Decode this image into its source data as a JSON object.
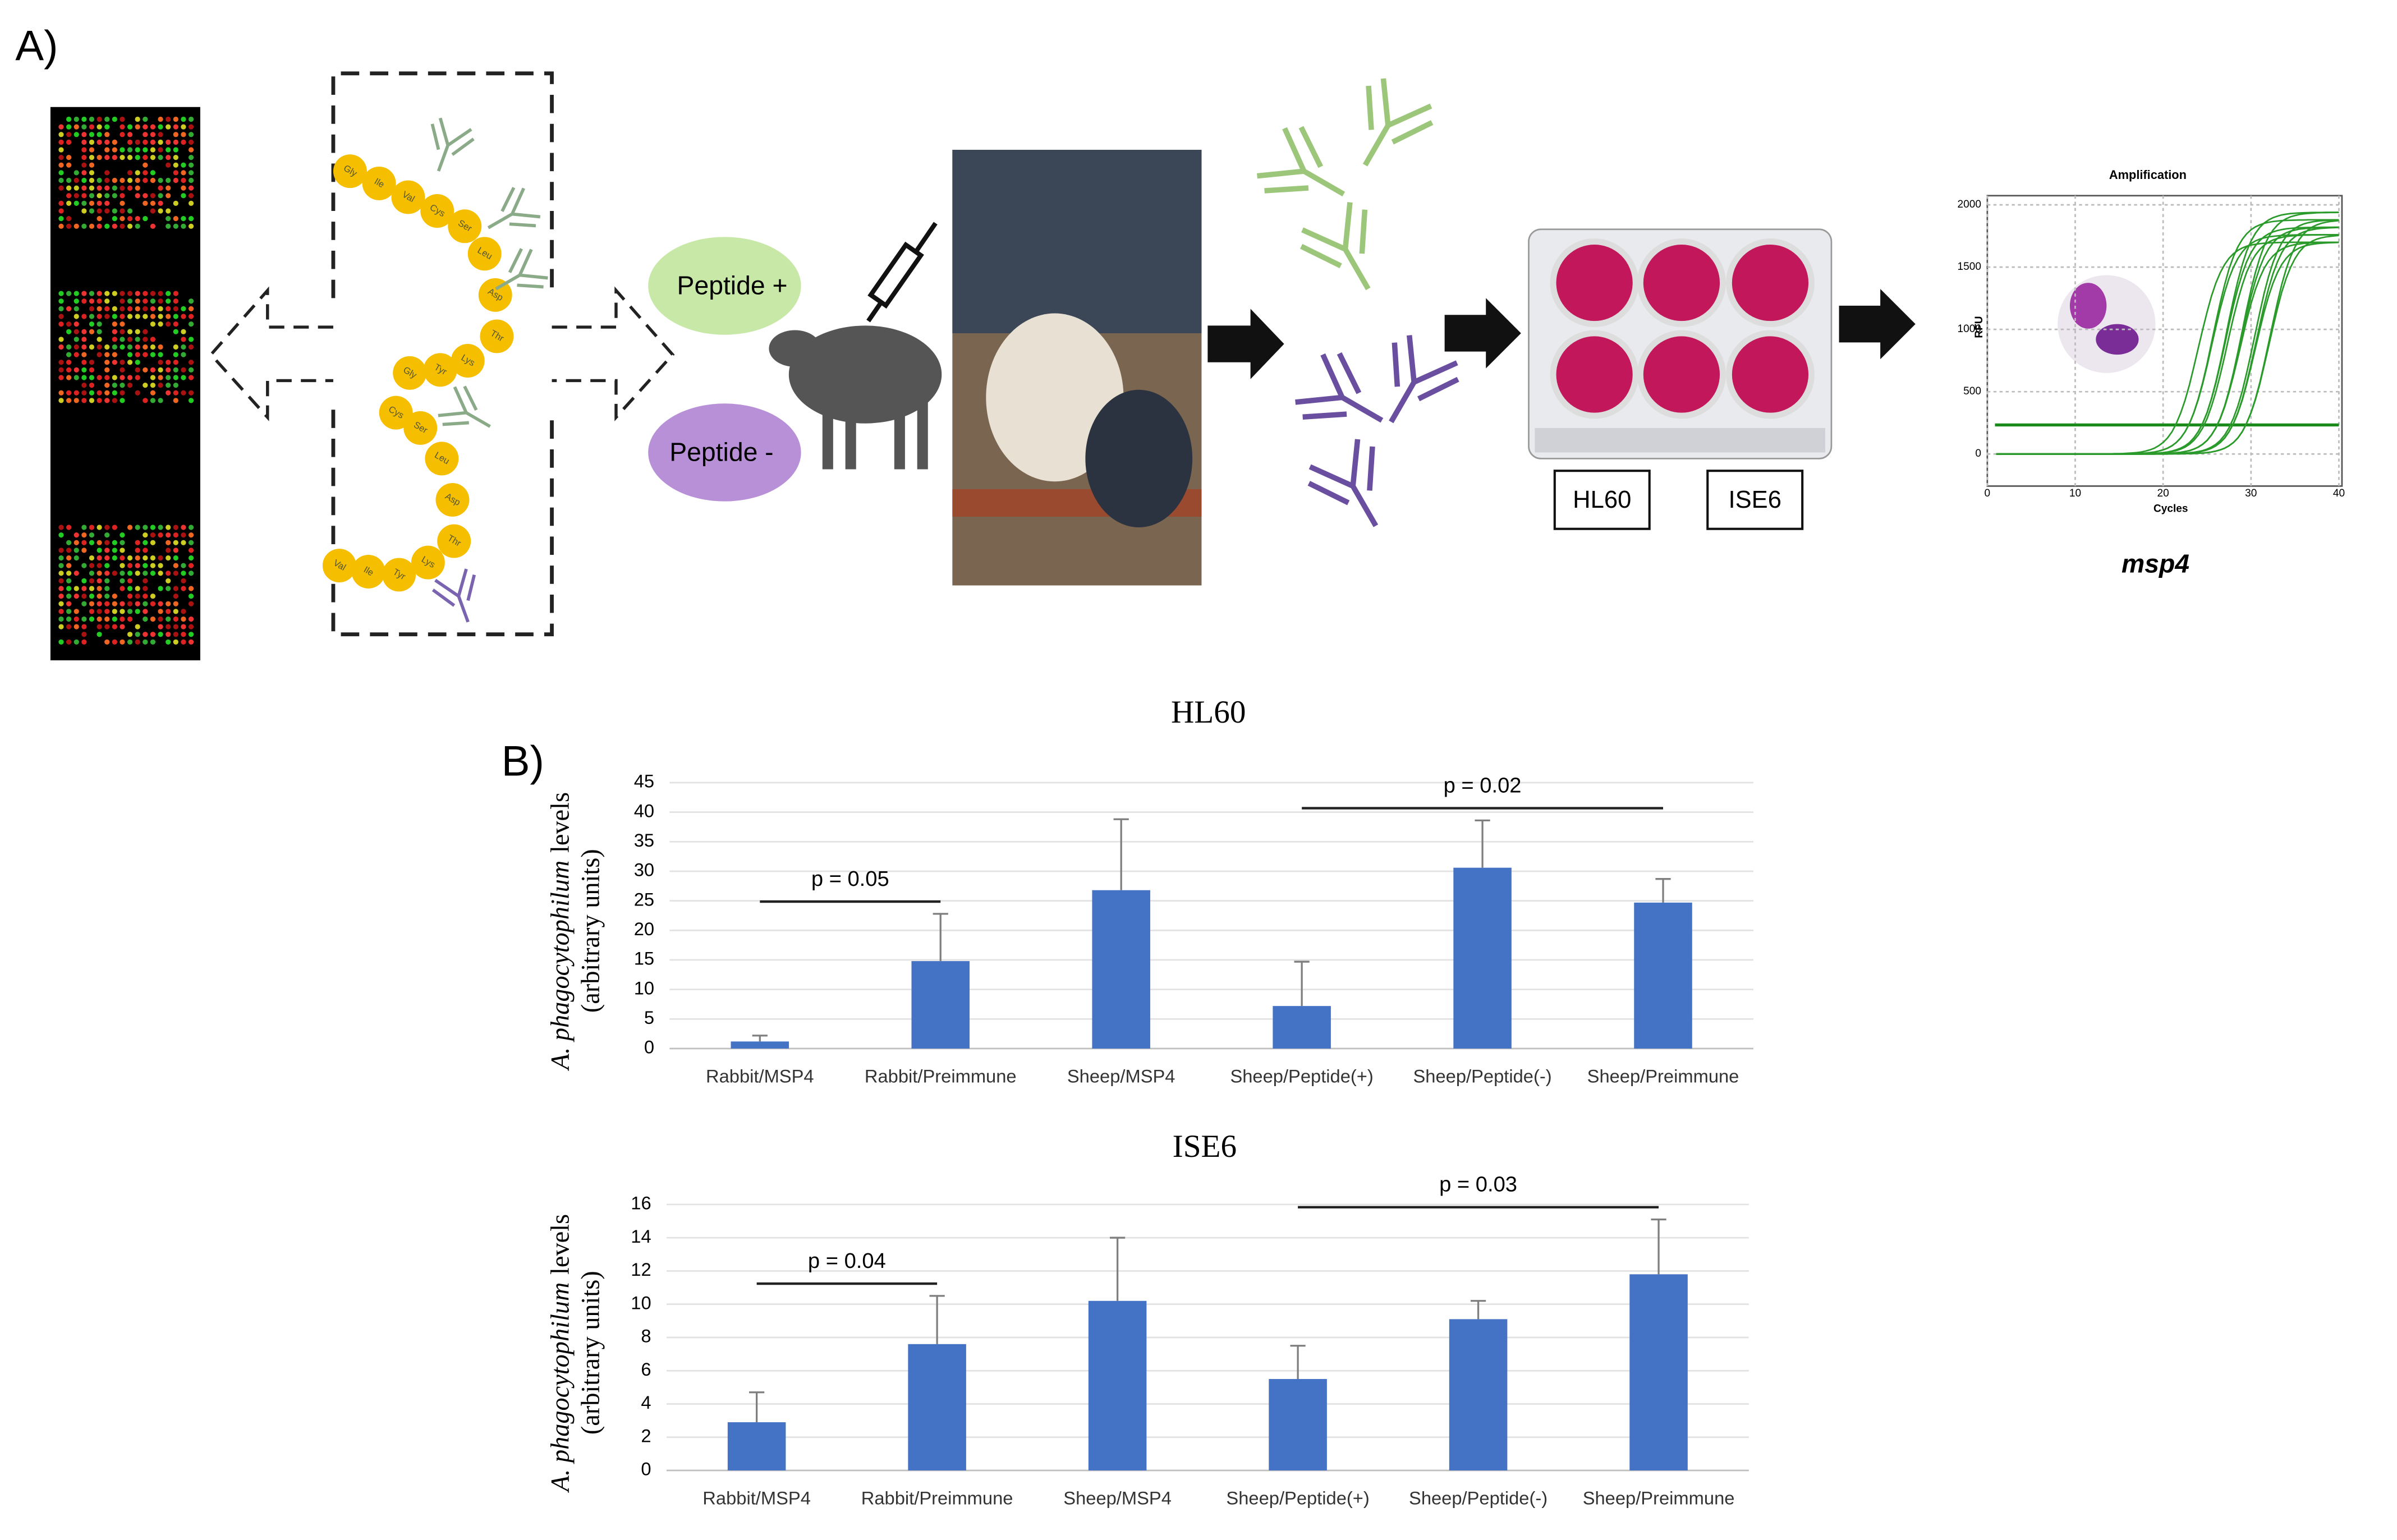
{
  "panel_a": {
    "label": "A)",
    "residues": [
      "Gly",
      "Ile",
      "Val",
      "Cys",
      "Ser",
      "Leu",
      "Asp",
      "Thr",
      "Lys",
      "Tyr",
      "Gly",
      "Cys",
      "Ser",
      "Leu",
      "Asp",
      "Thr",
      "Lys",
      "Tyr",
      "Ile",
      "Val"
    ],
    "peptide_pos": "Peptide +",
    "peptide_neg": "Peptide -",
    "cell_lines": [
      "HL60",
      "ISE6"
    ],
    "amplification": {
      "title": "Amplification",
      "ylabel": "RFU",
      "xlabel": "Cycles",
      "yticks": [
        0,
        500,
        1000,
        1500,
        2000
      ],
      "xticks": [
        0,
        10,
        20,
        30,
        40
      ]
    },
    "gene": "msp4"
  },
  "panel_b": {
    "label": "B)"
  },
  "chart_data": [
    {
      "type": "bar",
      "title": "HL60",
      "ylabel_italic": "A. phagocytophilum",
      "ylabel": "levels",
      "ylabel_line2": "(arbitrary units)",
      "categories": [
        "Rabbit/MSP4",
        "Rabbit/Preimmune",
        "Sheep/MSP4",
        "Sheep/Peptide(+)",
        "Sheep/Peptide(-)",
        "Sheep/Preimmune"
      ],
      "values": [
        1.2,
        14.8,
        26.8,
        7.2,
        30.6,
        24.7
      ],
      "errors": [
        1.0,
        8.0,
        12.0,
        7.5,
        8.0,
        4.0
      ],
      "color": "#4472c4",
      "ylim": [
        0,
        45
      ],
      "yticks": [
        0,
        5,
        10,
        15,
        20,
        25,
        30,
        35,
        40,
        45
      ],
      "grid": true,
      "annotations": [
        {
          "text": "p = 0.05",
          "categories": [
            "Rabbit/MSP4",
            "Rabbit/Preimmune"
          ]
        },
        {
          "text": "p = 0.02",
          "categories": [
            "Sheep/Peptide(+)",
            "Sheep/Preimmune"
          ]
        }
      ]
    },
    {
      "type": "bar",
      "title": "ISE6",
      "ylabel_italic": "A. phagocytophilum",
      "ylabel": "levels",
      "ylabel_line2": "(arbitrary units)",
      "categories": [
        "Rabbit/MSP4",
        "Rabbit/Preimmune",
        "Sheep/MSP4",
        "Sheep/Peptide(+)",
        "Sheep/Peptide(-)",
        "Sheep/Preimmune"
      ],
      "values": [
        2.9,
        7.6,
        10.2,
        5.5,
        9.1,
        11.8
      ],
      "errors": [
        1.8,
        2.9,
        3.8,
        2.0,
        1.1,
        3.3
      ],
      "color": "#4472c4",
      "ylim": [
        0,
        16
      ],
      "yticks": [
        0,
        2,
        4,
        6,
        8,
        10,
        12,
        14,
        16
      ],
      "grid": true,
      "annotations": [
        {
          "text": "p = 0.04",
          "categories": [
            "Rabbit/MSP4",
            "Rabbit/Preimmune"
          ]
        },
        {
          "text": "p = 0.03",
          "categories": [
            "Sheep/Peptide(+)",
            "Sheep/Preimmune"
          ]
        }
      ]
    }
  ]
}
